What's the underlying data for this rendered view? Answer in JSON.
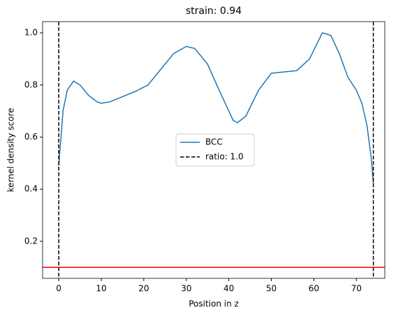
{
  "chart_data": {
    "type": "line",
    "title": "strain: 0.94",
    "xlabel": "Position in z",
    "ylabel": "kernel density score",
    "x": [
      0,
      1,
      2,
      3.5,
      5,
      7,
      9,
      10,
      12,
      15,
      18,
      21,
      24,
      27,
      30,
      32,
      35,
      38,
      41,
      42,
      44,
      47,
      50,
      53,
      56,
      59,
      62,
      64,
      66,
      68,
      70,
      71.3,
      72.5,
      73.5,
      74
    ],
    "series": [
      {
        "name": "BCC",
        "color": "#1f77b4",
        "values": [
          0.49,
          0.7,
          0.78,
          0.815,
          0.8,
          0.76,
          0.735,
          0.73,
          0.735,
          0.755,
          0.775,
          0.8,
          0.86,
          0.92,
          0.948,
          0.94,
          0.88,
          0.77,
          0.665,
          0.655,
          0.68,
          0.78,
          0.845,
          0.85,
          0.855,
          0.9,
          1.0,
          0.99,
          0.92,
          0.83,
          0.78,
          0.73,
          0.645,
          0.52,
          0.42
        ]
      }
    ],
    "vlines": {
      "name": "ratio: 1.0",
      "color": "#000000",
      "x": [
        0,
        74
      ]
    },
    "hline": {
      "color": "#ff0000",
      "y": 0.1
    },
    "xlim": [
      -3.8,
      76.7
    ],
    "ylim": [
      0.058,
      1.043
    ],
    "xticks": [
      0,
      10,
      20,
      30,
      40,
      50,
      60,
      70
    ],
    "yticks": [
      0.2,
      0.4,
      0.6,
      0.8,
      1.0
    ],
    "legend": "center"
  }
}
